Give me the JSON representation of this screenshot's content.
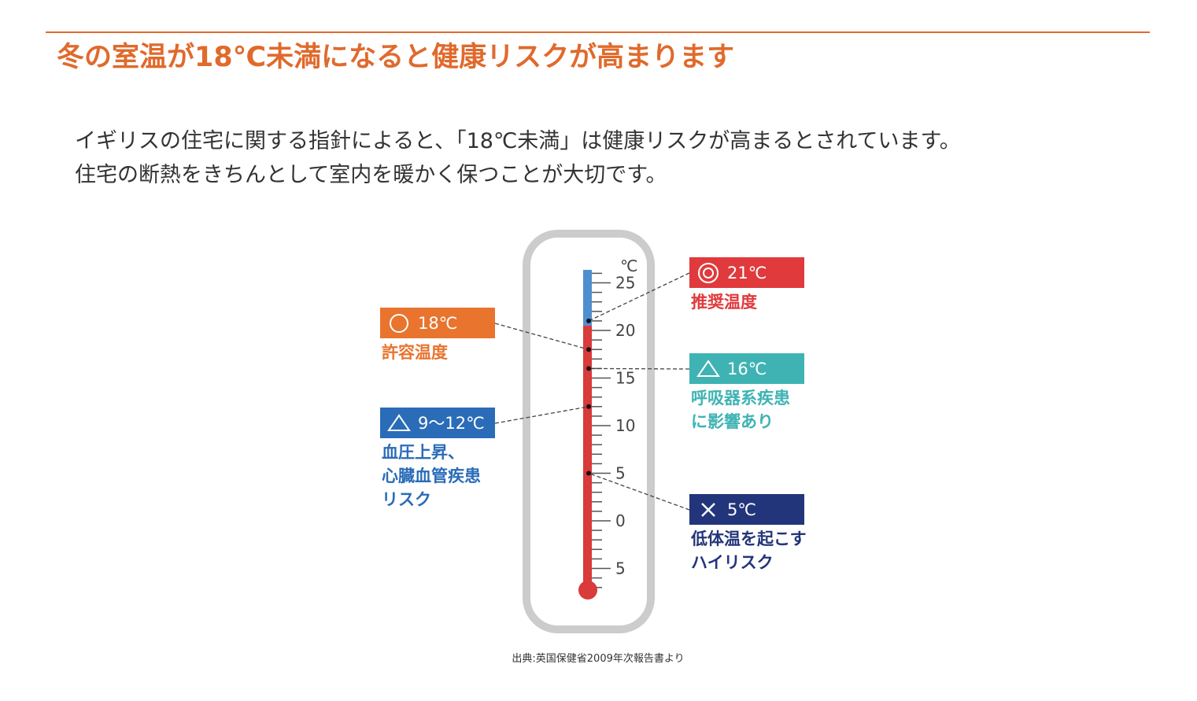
{
  "heading": "冬の室温が18℃未満になると健康リスクが高まります",
  "description": [
    "イギリスの住宅に関する指針によると、「18℃未満」は健康リスクが高まるとされています。",
    "住宅の断熱をきちんとして室内を暖かく保つことが大切です。"
  ],
  "thermometer": {
    "unit": "℃",
    "tick_labels": [
      "25",
      "20",
      "15",
      "10",
      "5",
      "0",
      "5"
    ],
    "tick_values": [
      25,
      20,
      15,
      10,
      5,
      0,
      -5
    ],
    "fill_level": 20.5,
    "colors": {
      "upper": "#4f8fd0",
      "lower": "#d93a3a",
      "frame": "#cccccc"
    }
  },
  "markers": [
    {
      "symbol": "double-circle-icon",
      "label": "21℃",
      "value": 21,
      "desc": [
        "推奨温度"
      ],
      "color": "#e03a3c"
    },
    {
      "symbol": "circle-icon",
      "label": "18℃",
      "value": 18,
      "desc": [
        "許容温度"
      ],
      "color": "#e8742e"
    },
    {
      "symbol": "triangle-icon",
      "label": "16℃",
      "value": 16,
      "desc": [
        "呼吸器系疾患",
        "に影響あり"
      ],
      "color": "#3fb3b3"
    },
    {
      "symbol": "triangle-icon",
      "label": "9〜12℃",
      "value": 12,
      "desc": [
        "血圧上昇、",
        "心臓血管疾患",
        "リスク"
      ],
      "color": "#2a6cb8"
    },
    {
      "symbol": "cross-icon",
      "label": "5℃",
      "value": 5,
      "desc": [
        "低体温を起こす",
        "ハイリスク"
      ],
      "color": "#23357a"
    }
  ],
  "source": "出典:英国保健省2009年次報告書より",
  "accent_color": "#e06a2c"
}
